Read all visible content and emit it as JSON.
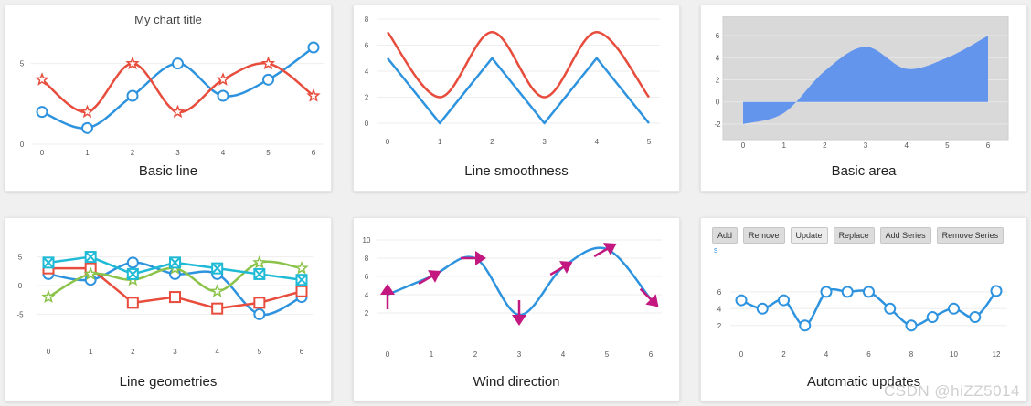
{
  "cards": [
    {
      "title": "Basic line"
    },
    {
      "title": "Line smoothness"
    },
    {
      "title": "Basic area"
    },
    {
      "title": "Line geometries"
    },
    {
      "title": "Wind direction"
    },
    {
      "title": "Automatic updates"
    }
  ],
  "controls": {
    "buttons": [
      {
        "label": "Add"
      },
      {
        "label": "Remove"
      },
      {
        "label": "Update"
      },
      {
        "label": "Replace"
      },
      {
        "label": "Add Series"
      },
      {
        "label": "Remove Series"
      }
    ],
    "legend_marker": "s"
  },
  "watermark": "CSDN @hiZZ5014",
  "chart_data": [
    {
      "type": "line",
      "title": "My chart title",
      "x": [
        0,
        1,
        2,
        3,
        4,
        5,
        6
      ],
      "series": [
        {
          "values": [
            2,
            1,
            3,
            5,
            3,
            4,
            6
          ],
          "color": "#2e93de",
          "marker": "circle",
          "smooth": true
        },
        {
          "values": [
            4,
            2,
            5,
            2,
            4,
            5,
            3
          ],
          "color": "#e74c3c",
          "marker": "star",
          "smooth": true
        }
      ],
      "ylim": [
        0,
        6
      ],
      "yticks": [
        0,
        5
      ],
      "xticks": [
        0,
        1,
        2,
        3,
        4,
        5,
        6
      ],
      "grid": true
    },
    {
      "type": "line",
      "title": "",
      "x": [
        0,
        1,
        2,
        3,
        4,
        5
      ],
      "series": [
        {
          "values": [
            5,
            0,
            5,
            0,
            5,
            0
          ],
          "color": "#2e93de",
          "smooth": false
        },
        {
          "values": [
            7,
            2,
            7,
            2,
            7,
            2
          ],
          "color": "#e74c3c",
          "smooth": true
        }
      ],
      "ylim": [
        0,
        8
      ],
      "yticks": [
        0,
        2,
        4,
        6,
        8
      ],
      "xticks": [
        0,
        1,
        2,
        3,
        4,
        5
      ],
      "grid": true
    },
    {
      "type": "area",
      "title": "",
      "x": [
        0,
        1,
        2,
        3,
        4,
        5,
        6
      ],
      "series": [
        {
          "values": [
            -2,
            -1,
            2.8,
            5,
            3,
            4,
            6
          ],
          "color": "#6495ed"
        }
      ],
      "ylim": [
        -3,
        7
      ],
      "yticks": [
        -2,
        0,
        2,
        4,
        6
      ],
      "xticks": [
        0,
        1,
        2,
        3,
        4,
        5,
        6
      ],
      "grid": true,
      "plot_bg": "#d9d9d9"
    },
    {
      "type": "line",
      "title": "",
      "x": [
        0,
        1,
        2,
        3,
        4,
        5,
        6
      ],
      "series": [
        {
          "values": [
            2,
            1,
            4,
            2,
            2,
            -5,
            -2
          ],
          "color": "#2e93de",
          "marker": "circle",
          "smooth": true
        },
        {
          "values": [
            3,
            3,
            -3,
            -2,
            -4,
            -3,
            -1
          ],
          "color": "#e74c3c",
          "marker": "square",
          "smooth": false
        },
        {
          "values": [
            -2,
            2,
            1,
            3,
            -1,
            4,
            3
          ],
          "color": "#8bc34a",
          "marker": "star",
          "smooth": true
        },
        {
          "values": [
            4,
            5,
            2,
            4,
            3,
            2,
            1
          ],
          "color": "#1fbad6",
          "marker": "crossbox",
          "smooth": false
        }
      ],
      "ylim": [
        -7,
        7
      ],
      "yticks": [
        -5,
        0,
        5
      ],
      "xticks": [
        0,
        1,
        2,
        3,
        4,
        5,
        6
      ],
      "grid": true
    },
    {
      "type": "line",
      "title": "",
      "x": [
        0,
        1,
        2,
        3,
        4,
        5,
        6
      ],
      "series": [
        {
          "values": [
            4,
            6,
            8,
            1.8,
            7,
            9,
            3.5
          ],
          "color": "#2e93de",
          "smooth": true,
          "arrow_color": "#c2187f"
        }
      ],
      "arrow_angles": [
        -90,
        -30,
        0,
        90,
        -30,
        -30,
        45
      ],
      "ylim": [
        0,
        10.5
      ],
      "yticks": [
        2,
        4,
        6,
        8,
        10
      ],
      "xticks": [
        0,
        1,
        2,
        3,
        4,
        5,
        6
      ],
      "grid": true
    },
    {
      "type": "line",
      "title": "",
      "x": [
        0,
        1,
        2,
        3,
        4,
        5,
        6,
        7,
        8,
        9,
        10,
        11,
        12
      ],
      "series": [
        {
          "values": [
            5,
            4,
            5,
            2,
            6,
            6,
            6,
            4,
            2,
            3,
            4,
            3,
            6.1
          ],
          "color": "#2e93de",
          "marker": "circle",
          "smooth": true
        }
      ],
      "ylim": [
        1,
        7.5
      ],
      "yticks": [
        2,
        4,
        6
      ],
      "xticks": [
        0,
        2,
        4,
        6,
        8,
        10,
        12
      ],
      "grid": true
    }
  ]
}
